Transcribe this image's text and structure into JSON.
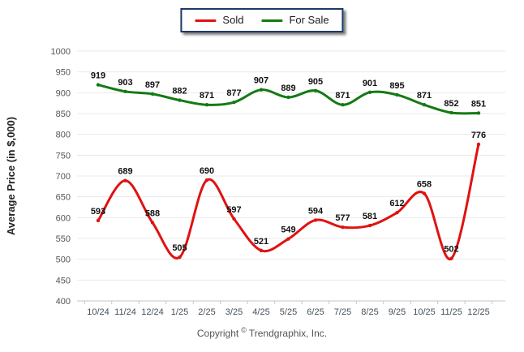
{
  "legend": {
    "items": [
      {
        "label": "Sold",
        "color": "#e01212"
      },
      {
        "label": "For Sale",
        "color": "#147a14"
      }
    ]
  },
  "footer": {
    "copyright_prefix": "Copyright",
    "copyright_symbol": "©",
    "copyright_company": "Trendgraphix, Inc."
  },
  "chart_data": {
    "type": "line",
    "title": "",
    "xlabel": "",
    "ylabel": "Average Price (in $,000)",
    "ylim": [
      400,
      1000
    ],
    "ytick_step": 50,
    "grid": true,
    "legend_position": "top-center",
    "curve": "smooth-spline",
    "categories": [
      "10/24",
      "11/24",
      "12/24",
      "1/25",
      "2/25",
      "3/25",
      "4/25",
      "5/25",
      "6/25",
      "7/25",
      "8/25",
      "9/25",
      "10/25",
      "11/25",
      "12/25"
    ],
    "series": [
      {
        "name": "Sold",
        "color": "#e01212",
        "values": [
          593,
          689,
          588,
          505,
          690,
          597,
          521,
          549,
          594,
          577,
          581,
          612,
          658,
          502,
          776
        ]
      },
      {
        "name": "For Sale",
        "color": "#147a14",
        "values": [
          919,
          903,
          897,
          882,
          871,
          877,
          907,
          889,
          905,
          871,
          901,
          895,
          871,
          852,
          851
        ]
      }
    ]
  }
}
